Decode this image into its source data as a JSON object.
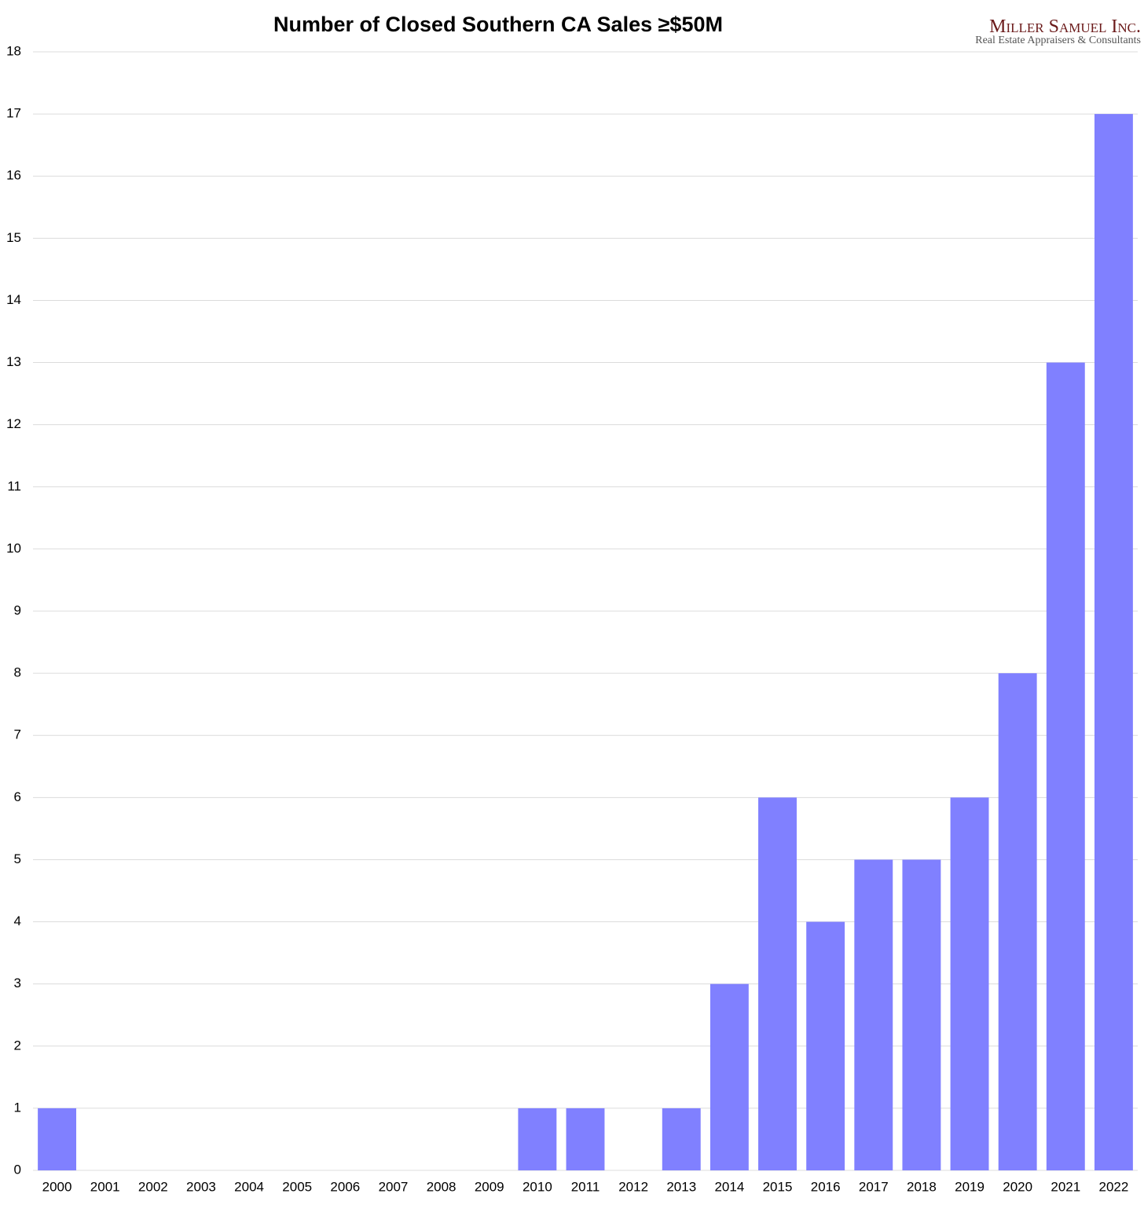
{
  "chart_data": {
    "type": "bar",
    "title": "Number of Closed Southern CA Sales ≥$50M",
    "categories": [
      "2000",
      "2001",
      "2002",
      "2003",
      "2004",
      "2005",
      "2006",
      "2007",
      "2008",
      "2009",
      "2010",
      "2011",
      "2012",
      "2013",
      "2014",
      "2015",
      "2016",
      "2017",
      "2018",
      "2019",
      "2020",
      "2021",
      "2022"
    ],
    "values": [
      1,
      0,
      0,
      0,
      0,
      0,
      0,
      0,
      0,
      0,
      1,
      1,
      0,
      1,
      3,
      6,
      4,
      5,
      5,
      6,
      8,
      13,
      17
    ],
    "color": "#8080ff",
    "ylim": [
      0,
      18
    ],
    "yticks": [
      0,
      1,
      2,
      3,
      4,
      5,
      6,
      7,
      8,
      9,
      10,
      11,
      12,
      13,
      14,
      15,
      16,
      17,
      18
    ],
    "grid": true
  },
  "logo": {
    "name": "Miller Samuel Inc.",
    "tagline": "Real Estate Appraisers & Consultants"
  }
}
